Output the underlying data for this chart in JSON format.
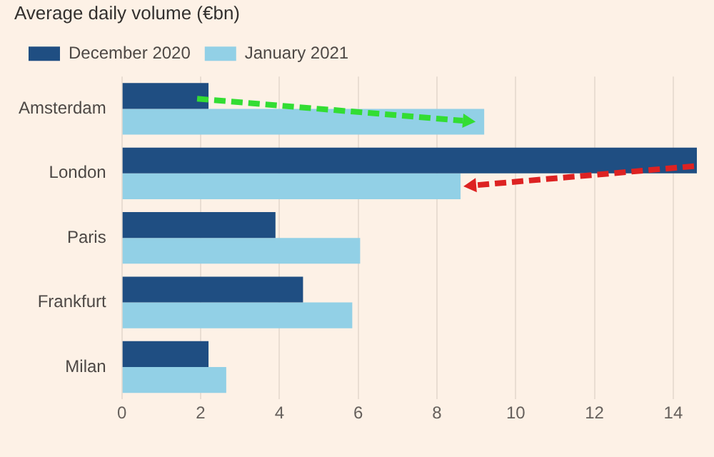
{
  "chart_data": {
    "type": "bar",
    "orientation": "horizontal",
    "title": "Average daily volume (€bn)",
    "categories": [
      "Amsterdam",
      "London",
      "Paris",
      "Frankfurt",
      "Milan"
    ],
    "series": [
      {
        "name": "December 2020",
        "color": "#1f4e82",
        "values": [
          2.2,
          14.6,
          3.9,
          4.6,
          2.2
        ]
      },
      {
        "name": "January 2021",
        "color": "#92d0e6",
        "values": [
          9.2,
          8.6,
          6.05,
          5.85,
          2.65
        ]
      }
    ],
    "xlim": [
      0,
      14.6
    ],
    "xticks": [
      0,
      2,
      4,
      6,
      8,
      10,
      12,
      14
    ],
    "grid": "x",
    "legend": "top left"
  }
}
